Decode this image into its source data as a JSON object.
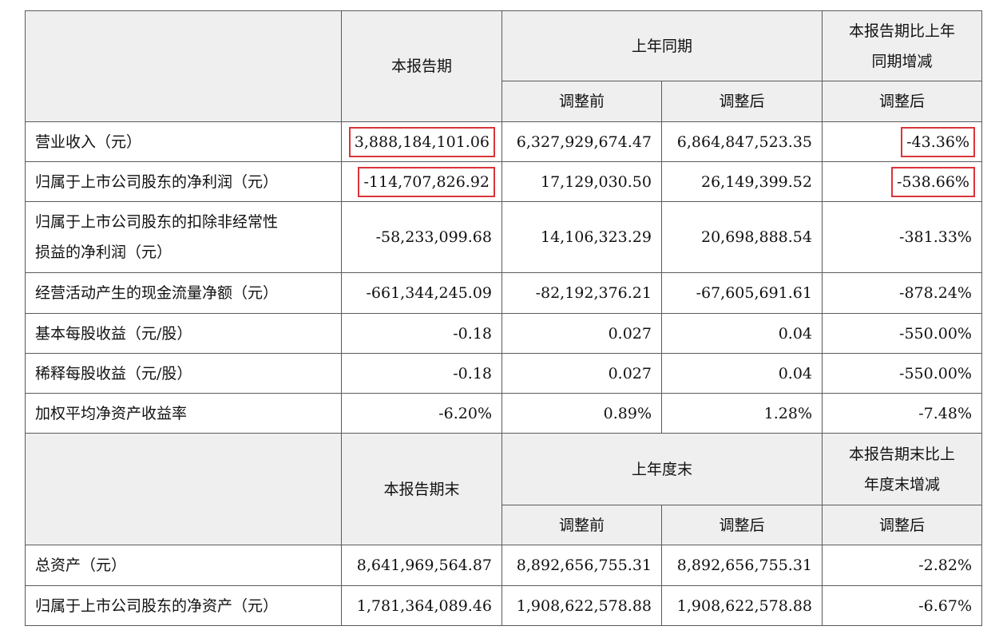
{
  "section1": {
    "col_current": "本报告期",
    "col_prior_group": "上年同期",
    "col_change_group": [
      "本报告期比上年",
      "同期增减"
    ],
    "sub_before": "调整前",
    "sub_after": "调整后",
    "sub_change": "调整后",
    "rows": [
      {
        "label": [
          "营业收入（元）"
        ],
        "current": "3,888,184,101.06",
        "before": "6,327,929,674.47",
        "after": "6,864,847,523.35",
        "change": "-43.36%"
      },
      {
        "label": [
          "归属于上市公司股东的净利润（元）"
        ],
        "current": "-114,707,826.92",
        "before": "17,129,030.50",
        "after": "26,149,399.52",
        "change": "-538.66%"
      },
      {
        "label": [
          "归属于上市公司股东的扣除非经常性",
          "损益的净利润（元）"
        ],
        "current": "-58,233,099.68",
        "before": "14,106,323.29",
        "after": "20,698,888.54",
        "change": "-381.33%"
      },
      {
        "label": [
          "经营活动产生的现金流量净额（元）"
        ],
        "current": "-661,344,245.09",
        "before": "-82,192,376.21",
        "after": "-67,605,691.61",
        "change": "-878.24%"
      },
      {
        "label": [
          "基本每股收益（元/股）"
        ],
        "current": "-0.18",
        "before": "0.027",
        "after": "0.04",
        "change": "-550.00%"
      },
      {
        "label": [
          "稀释每股收益（元/股）"
        ],
        "current": "-0.18",
        "before": "0.027",
        "after": "0.04",
        "change": "-550.00%"
      },
      {
        "label": [
          "加权平均净资产收益率"
        ],
        "current": "-6.20%",
        "before": "0.89%",
        "after": "1.28%",
        "change": "-7.48%"
      }
    ]
  },
  "section2": {
    "col_current": "本报告期末",
    "col_prior_group": "上年度末",
    "col_change_group": [
      "本报告期末比上",
      "年度末增减"
    ],
    "sub_before": "调整前",
    "sub_after": "调整后",
    "sub_change": "调整后",
    "rows": [
      {
        "label": [
          "总资产（元）"
        ],
        "current": "8,641,969,564.87",
        "before": "8,892,656,755.31",
        "after": "8,892,656,755.31",
        "change": "-2.82%"
      },
      {
        "label": [
          "归属于上市公司股东的净资产（元）"
        ],
        "current": "1,781,364,089.46",
        "before": "1,908,622,578.88",
        "after": "1,908,622,578.88",
        "change": "-6.67%"
      }
    ]
  },
  "highlight_color": "#d9353b"
}
